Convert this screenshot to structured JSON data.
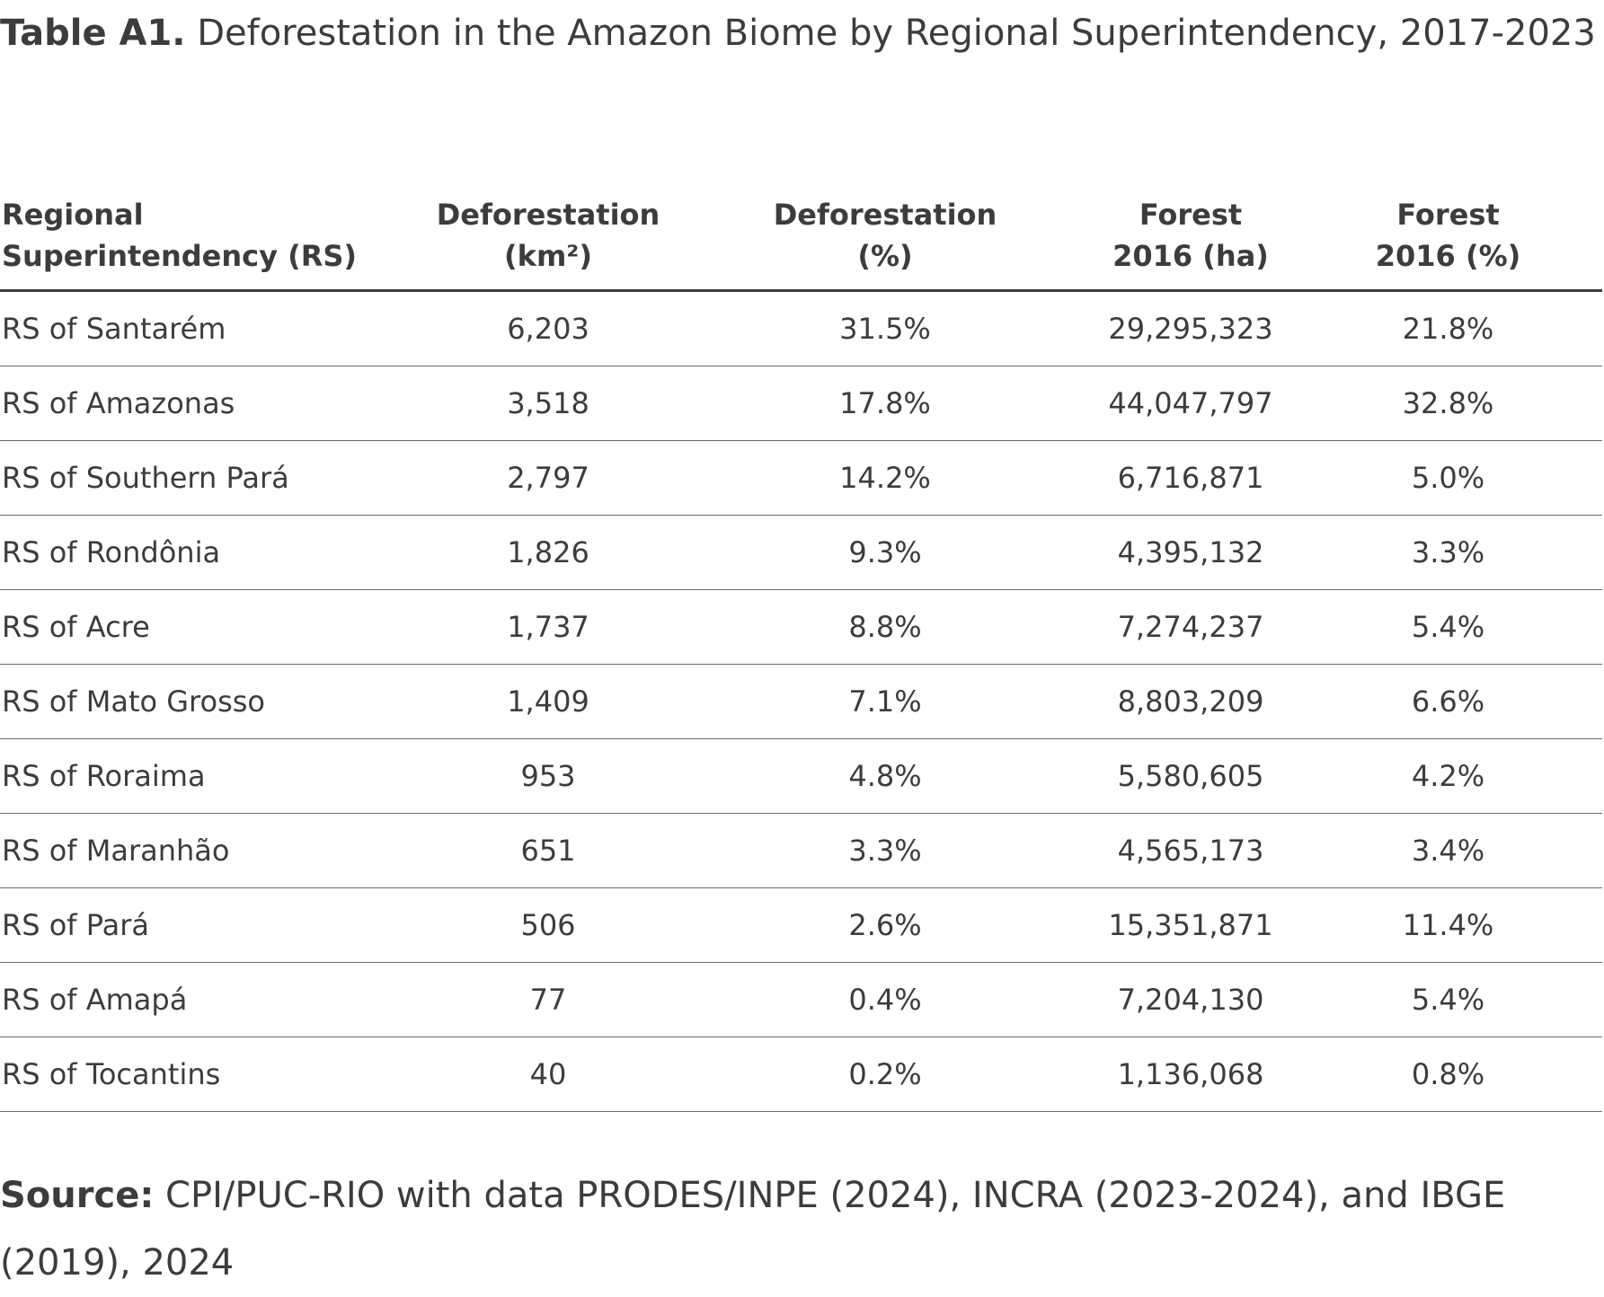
{
  "title": {
    "label": "Table A1.",
    "text": " Deforestation in the Amazon Biome by Regional Superintendency, 2017-2023"
  },
  "table": {
    "headers": [
      {
        "line1": "Regional",
        "line2": "Superintendency (RS)"
      },
      {
        "line1": "Deforestation",
        "line2": "(km²)"
      },
      {
        "line1": "Deforestation",
        "line2": "(%)"
      },
      {
        "line1": "Forest",
        "line2": "2016 (ha)"
      },
      {
        "line1": "Forest",
        "line2": "2016 (%)"
      }
    ],
    "rows": [
      {
        "rs": "RS of Santarém",
        "def_km2": "6,203",
        "def_pct": "31.5%",
        "forest_ha": "29,295,323",
        "forest_pct": "21.8%"
      },
      {
        "rs": "RS of Amazonas",
        "def_km2": "3,518",
        "def_pct": "17.8%",
        "forest_ha": "44,047,797",
        "forest_pct": "32.8%"
      },
      {
        "rs": "RS of Southern Pará",
        "def_km2": "2,797",
        "def_pct": "14.2%",
        "forest_ha": "6,716,871",
        "forest_pct": "5.0%"
      },
      {
        "rs": "RS of Rondônia",
        "def_km2": "1,826",
        "def_pct": "9.3%",
        "forest_ha": "4,395,132",
        "forest_pct": "3.3%"
      },
      {
        "rs": "RS of Acre",
        "def_km2": "1,737",
        "def_pct": "8.8%",
        "forest_ha": "7,274,237",
        "forest_pct": "5.4%"
      },
      {
        "rs": "RS of Mato Grosso",
        "def_km2": "1,409",
        "def_pct": "7.1%",
        "forest_ha": "8,803,209",
        "forest_pct": "6.6%"
      },
      {
        "rs": "RS of Roraima",
        "def_km2": "953",
        "def_pct": "4.8%",
        "forest_ha": "5,580,605",
        "forest_pct": "4.2%"
      },
      {
        "rs": "RS of Maranhão",
        "def_km2": "651",
        "def_pct": "3.3%",
        "forest_ha": "4,565,173",
        "forest_pct": "3.4%"
      },
      {
        "rs": "RS of Pará",
        "def_km2": "506",
        "def_pct": "2.6%",
        "forest_ha": "15,351,871",
        "forest_pct": "11.4%"
      },
      {
        "rs": "RS of Amapá",
        "def_km2": "77",
        "def_pct": "0.4%",
        "forest_ha": "7,204,130",
        "forest_pct": "5.4%"
      },
      {
        "rs": "RS of Tocantins",
        "def_km2": "40",
        "def_pct": "0.2%",
        "forest_ha": "1,136,068",
        "forest_pct": "0.8%"
      }
    ]
  },
  "source": {
    "label": "Source:",
    "text": " CPI/PUC-RIO with data PRODES/INPE (2024), INCRA (2023-2024), and IBGE (2019), 2024"
  }
}
